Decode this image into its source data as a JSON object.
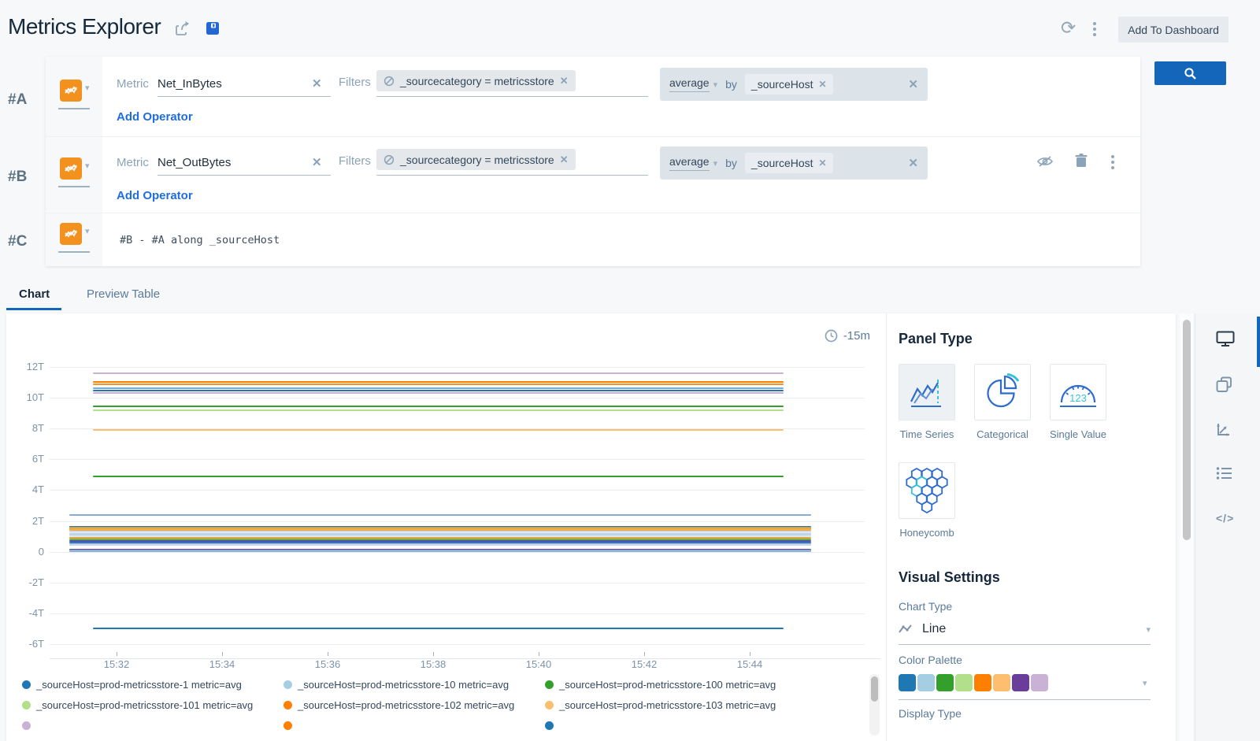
{
  "header": {
    "title": "Metrics Explorer",
    "add_to_dashboard_label": "Add To Dashboard",
    "refresh_glyph": "⟳"
  },
  "icons": {
    "close": "✕",
    "code": "</>"
  },
  "queries": {
    "row_a": {
      "id": "#A",
      "metric_label": "Metric",
      "metric_value": "Net_InBytes",
      "filters_label": "Filters",
      "filter_chip": "_sourcecategory = metricsstore",
      "agg_fn": "average",
      "agg_by_label": "by",
      "agg_by_value": "_sourceHost",
      "add_operator_label": "Add Operator"
    },
    "row_b": {
      "id": "#B",
      "metric_label": "Metric",
      "metric_value": "Net_OutBytes",
      "filters_label": "Filters",
      "filter_chip": "_sourcecategory = metricsstore",
      "agg_fn": "average",
      "agg_by_label": "by",
      "agg_by_value": "_sourceHost",
      "add_operator_label": "Add Operator"
    },
    "row_c": {
      "id": "#C",
      "expression": "#B - #A along _sourceHost"
    }
  },
  "tabs": {
    "chart": "Chart",
    "preview_table": "Preview Table"
  },
  "chart_data": {
    "type": "line",
    "title": "",
    "time_range_label": "-15m",
    "grid": true,
    "yticks": [
      {
        "label": "12T",
        "value": 12
      },
      {
        "label": "10T",
        "value": 10
      },
      {
        "label": "8T",
        "value": 8
      },
      {
        "label": "6T",
        "value": 6
      },
      {
        "label": "4T",
        "value": 4
      },
      {
        "label": "2T",
        "value": 2
      },
      {
        "label": "0",
        "value": 0
      },
      {
        "label": "-2T",
        "value": -2
      },
      {
        "label": "-4T",
        "value": -4
      },
      {
        "label": "-6T",
        "value": -6
      }
    ],
    "xticks": [
      "15:32",
      "15:34",
      "15:36",
      "15:38",
      "15:40",
      "15:42",
      "15:44"
    ],
    "x_range": [
      "15:31",
      "15:45"
    ],
    "ylim": [
      -6.8,
      12.6
    ],
    "series": [
      {
        "value_T": 11.6,
        "color": "#cab2d6",
        "width": 2,
        "span": "short"
      },
      {
        "value_T": 11.05,
        "color": "#ff7f00",
        "width": 2,
        "span": "short"
      },
      {
        "value_T": 10.85,
        "color": "#f49222",
        "width": 2,
        "span": "short"
      },
      {
        "value_T": 10.6,
        "color": "#7fa8d0",
        "width": 2,
        "span": "short"
      },
      {
        "value_T": 10.45,
        "color": "#1f78b4",
        "width": 2,
        "span": "short"
      },
      {
        "value_T": 10.3,
        "color": "#cab2d6",
        "width": 2,
        "span": "short"
      },
      {
        "value_T": 9.45,
        "color": "#33a02c",
        "width": 2,
        "span": "short"
      },
      {
        "value_T": 9.2,
        "color": "#b2df8a",
        "width": 2,
        "span": "short"
      },
      {
        "value_T": 7.9,
        "color": "#fdbf6f",
        "width": 2,
        "span": "short"
      },
      {
        "value_T": 4.9,
        "color": "#33a02c",
        "width": 2,
        "span": "short"
      },
      {
        "value_T": 2.4,
        "color": "#85add3",
        "width": 2,
        "span": "long"
      },
      {
        "value_T": 1.6,
        "color": "#1f78b4",
        "width": 2,
        "span": "long"
      },
      {
        "value_T": 1.5,
        "color": "#dd9f3c",
        "width": 4,
        "span": "long"
      },
      {
        "value_T": 1.42,
        "color": "#eab04e",
        "width": 3,
        "span": "long"
      },
      {
        "value_T": 1.33,
        "color": "#d9c6e4",
        "width": 2,
        "span": "long"
      },
      {
        "value_T": 1.25,
        "color": "#e4e9f1",
        "width": 2,
        "span": "long"
      },
      {
        "value_T": 1.12,
        "color": "#bcd6ea",
        "width": 3,
        "span": "long"
      },
      {
        "value_T": 1.0,
        "color": "#dde7f0",
        "width": 2,
        "span": "long"
      },
      {
        "value_T": 0.9,
        "color": "#e5a53f",
        "width": 2,
        "span": "long"
      },
      {
        "value_T": 0.8,
        "color": "#74ab48",
        "width": 2,
        "span": "long"
      },
      {
        "value_T": 0.72,
        "color": "#4656a8",
        "width": 2,
        "span": "long"
      },
      {
        "value_T": 0.62,
        "color": "#3f6fc1",
        "width": 2,
        "span": "long"
      },
      {
        "value_T": 0.52,
        "color": "#9fc4e0",
        "width": 2,
        "span": "long"
      },
      {
        "value_T": 0.42,
        "color": "#c8d8e8",
        "width": 2,
        "span": "long"
      },
      {
        "value_T": 0.15,
        "color": "#6a3d9a",
        "width": 2,
        "span": "long"
      },
      {
        "value_T": 0.05,
        "color": "#8fb3d4",
        "width": 3,
        "span": "long"
      },
      {
        "value_T": -5.0,
        "color": "#1f78b4",
        "width": 2,
        "span": "short"
      }
    ],
    "legend": [
      {
        "color": "#1f78b4",
        "label": "_sourceHost=prod-metricsstore-1 metric=avg"
      },
      {
        "color": "#a6cee3",
        "label": "_sourceHost=prod-metricsstore-10 metric=avg"
      },
      {
        "color": "#33a02c",
        "label": "_sourceHost=prod-metricsstore-100 metric=avg"
      },
      {
        "color": "#b2df8a",
        "label": "_sourceHost=prod-metricsstore-101 metric=avg"
      },
      {
        "color": "#ff7f00",
        "label": "_sourceHost=prod-metricsstore-102 metric=avg"
      },
      {
        "color": "#fdbf6f",
        "label": "_sourceHost=prod-metricsstore-103 metric=avg"
      },
      {
        "color": "#cab2d6",
        "label": ""
      },
      {
        "color": "#ff7f00",
        "label": ""
      },
      {
        "color": "#1f78b4",
        "label": ""
      }
    ],
    "legend_position": "bottom"
  },
  "panel": {
    "panel_type_title": "Panel Type",
    "types": [
      {
        "label": "Time Series",
        "selected": true
      },
      {
        "label": "Categorical",
        "selected": false
      },
      {
        "label": "Single Value",
        "selected": false
      },
      {
        "label": "Honeycomb",
        "selected": false
      }
    ],
    "visual_settings_title": "Visual Settings",
    "chart_type_label": "Chart Type",
    "chart_type_value": "Line",
    "color_palette_label": "Color Palette",
    "palette": [
      "#1f78b4",
      "#a6cee3",
      "#33a02c",
      "#b2df8a",
      "#ff7f00",
      "#fdbf6f",
      "#6a3d9a",
      "#cab2d6"
    ],
    "display_type_label": "Display Type"
  },
  "colors": {
    "accent_blue": "#1466bb",
    "metric_icon_orange": "#f2911d"
  }
}
